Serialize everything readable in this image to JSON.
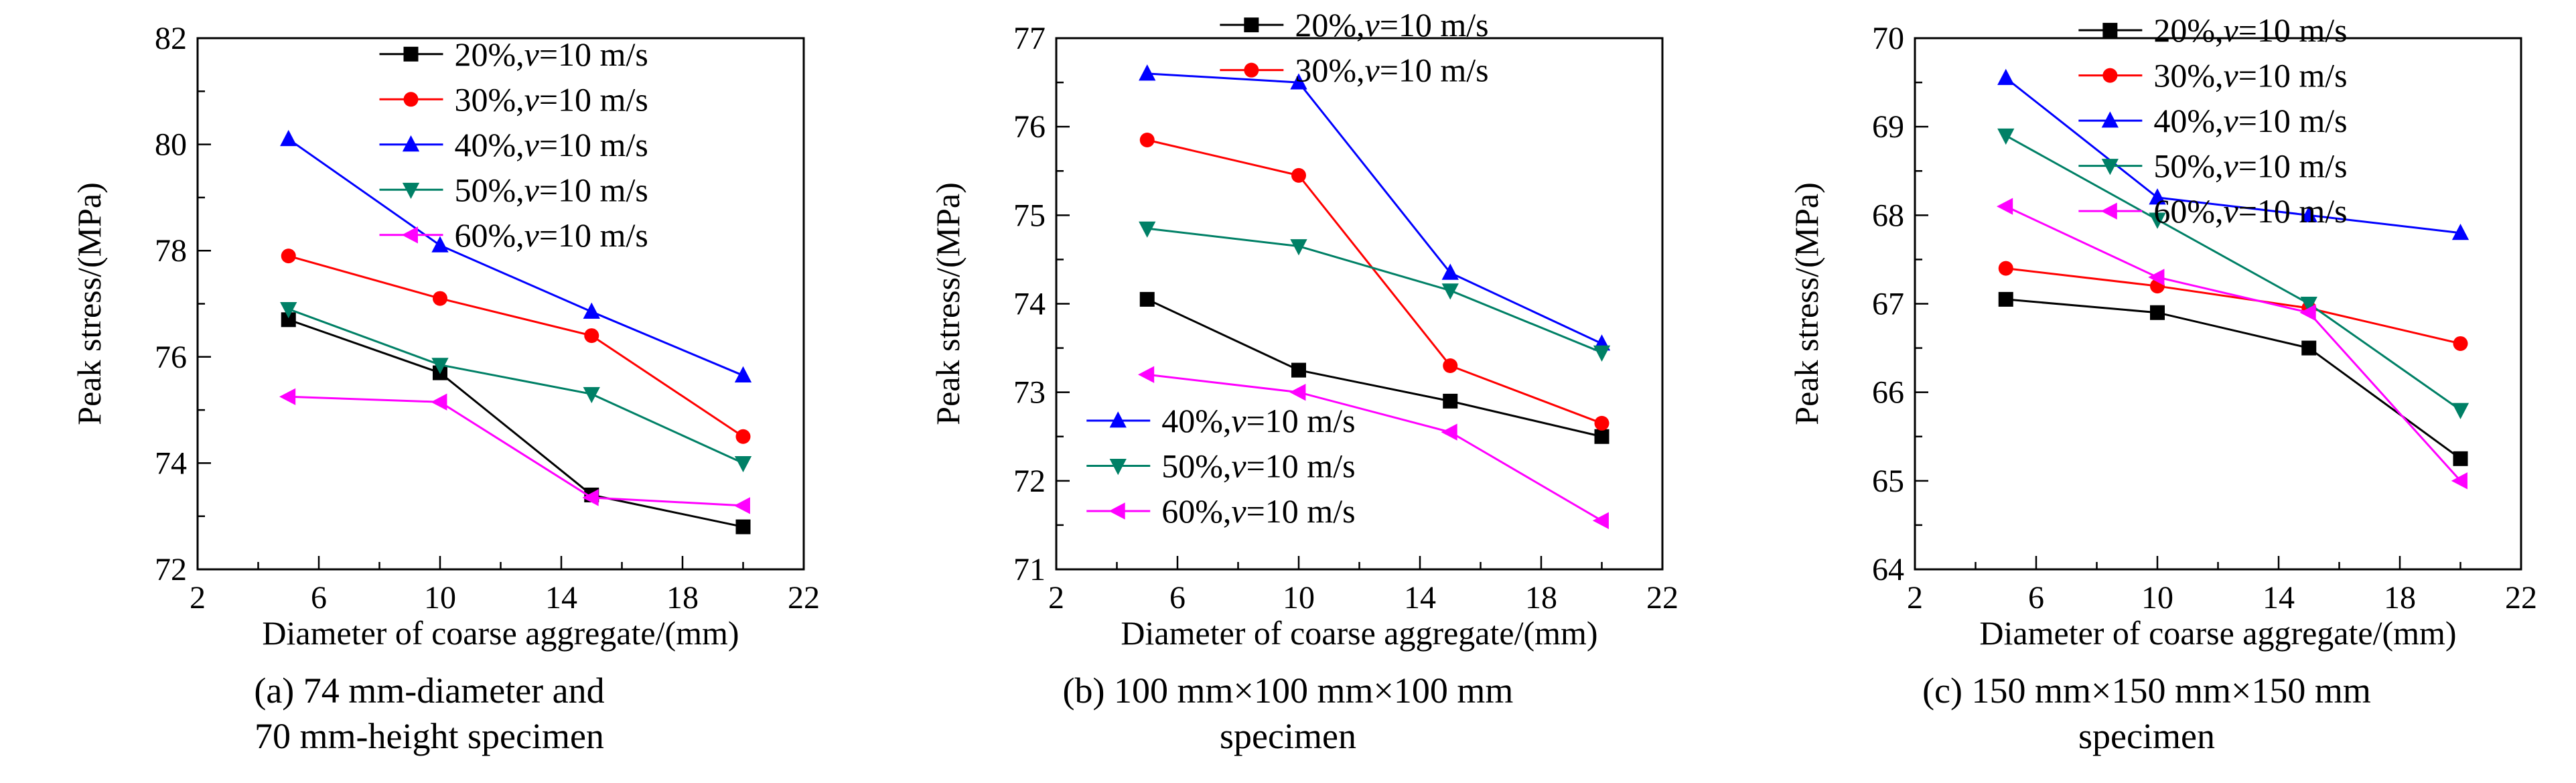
{
  "figure": {
    "background": "#ffffff",
    "text_color": "#000000",
    "axis_color": "#000000"
  },
  "chart_data": [
    {
      "type": "line",
      "title": "",
      "xlabel": "Diameter of coarse aggregate/(mm)",
      "ylabel": "Peak stress/(MPa)",
      "x": [
        5,
        10,
        15,
        20
      ],
      "xlim": [
        2,
        22
      ],
      "xticks": [
        2,
        6,
        10,
        14,
        18,
        22
      ],
      "xminor": 2,
      "ylim": [
        72,
        82
      ],
      "yticks": [
        72,
        74,
        76,
        78,
        80,
        82
      ],
      "yminor": 1,
      "grid": false,
      "series": [
        {
          "name": "20%,v=10 m/s",
          "marker": "square",
          "color": "#000000",
          "values": [
            76.7,
            75.7,
            73.4,
            72.8
          ]
        },
        {
          "name": "30%,v=10 m/s",
          "marker": "circle",
          "color": "#ff0000",
          "values": [
            77.9,
            77.1,
            76.4,
            74.5
          ]
        },
        {
          "name": "40%,v=10 m/s",
          "marker": "triangle-up",
          "color": "#0000ff",
          "values": [
            80.1,
            78.1,
            76.85,
            75.65
          ]
        },
        {
          "name": "50%,v=10 m/s",
          "marker": "triangle-down",
          "color": "#008066",
          "values": [
            76.9,
            75.85,
            75.3,
            74.0
          ]
        },
        {
          "name": "60%,v=10 m/s",
          "marker": "triangle-left",
          "color": "#ff00ff",
          "values": [
            75.25,
            75.15,
            73.35,
            73.2
          ]
        }
      ],
      "legends": [
        {
          "entries": [
            0,
            1,
            2,
            3,
            4
          ],
          "x": 0.3,
          "y": 0.03
        }
      ],
      "caption": [
        "(a) 74 mm-diameter and",
        "70 mm-height specimen"
      ]
    },
    {
      "type": "line",
      "title": "",
      "xlabel": "Diameter of coarse aggregate/(mm)",
      "ylabel": "Peak stress/(MPa)",
      "x": [
        5,
        10,
        15,
        20
      ],
      "xlim": [
        2,
        22
      ],
      "xticks": [
        2,
        6,
        10,
        14,
        18,
        22
      ],
      "xminor": 2,
      "ylim": [
        71,
        77
      ],
      "yticks": [
        71,
        72,
        73,
        74,
        75,
        76,
        77
      ],
      "yminor": 0.5,
      "grid": false,
      "series": [
        {
          "name": "20%,v=10 m/s",
          "marker": "square",
          "color": "#000000",
          "values": [
            74.05,
            73.25,
            72.9,
            72.5
          ]
        },
        {
          "name": "30%,v=10 m/s",
          "marker": "circle",
          "color": "#ff0000",
          "values": [
            75.85,
            75.45,
            73.3,
            72.65
          ]
        },
        {
          "name": "40%,v=10 m/s",
          "marker": "triangle-up",
          "color": "#0000ff",
          "values": [
            76.6,
            76.5,
            74.35,
            73.55
          ]
        },
        {
          "name": "50%,v=10 m/s",
          "marker": "triangle-down",
          "color": "#008066",
          "values": [
            74.85,
            74.65,
            74.15,
            73.45
          ]
        },
        {
          "name": "60%,v=10 m/s",
          "marker": "triangle-left",
          "color": "#ff00ff",
          "values": [
            73.2,
            73.0,
            72.55,
            71.55
          ]
        }
      ],
      "legends": [
        {
          "entries": [
            0,
            1
          ],
          "x": 0.27,
          "y": -0.025
        },
        {
          "entries": [
            2,
            3,
            4
          ],
          "x": 0.05,
          "y": 0.72
        }
      ],
      "caption": [
        "(b) 100 mm×100 mm×100 mm",
        "specimen"
      ]
    },
    {
      "type": "line",
      "title": "",
      "xlabel": "Diameter of coarse aggregate/(mm)",
      "ylabel": "Peak stress/(MPa)",
      "x": [
        5,
        10,
        15,
        20
      ],
      "xlim": [
        2,
        22
      ],
      "xticks": [
        2,
        6,
        10,
        14,
        18,
        22
      ],
      "xminor": 2,
      "ylim": [
        64,
        70
      ],
      "yticks": [
        64,
        65,
        66,
        67,
        68,
        69,
        70
      ],
      "yminor": 0.5,
      "grid": false,
      "series": [
        {
          "name": "20%,v=10 m/s",
          "marker": "square",
          "color": "#000000",
          "values": [
            67.05,
            66.9,
            66.5,
            65.25
          ]
        },
        {
          "name": "30%,v=10 m/s",
          "marker": "circle",
          "color": "#ff0000",
          "values": [
            67.4,
            67.2,
            66.95,
            66.55
          ]
        },
        {
          "name": "40%,v=10 m/s",
          "marker": "triangle-up",
          "color": "#0000ff",
          "values": [
            69.55,
            68.2,
            68.0,
            67.8
          ]
        },
        {
          "name": "50%,v=10 m/s",
          "marker": "triangle-down",
          "color": "#008066",
          "values": [
            68.9,
            67.95,
            67.0,
            65.8
          ]
        },
        {
          "name": "60%,v=10 m/s",
          "marker": "triangle-left",
          "color": "#ff00ff",
          "values": [
            68.1,
            67.3,
            66.9,
            65.0
          ]
        }
      ],
      "legends": [
        {
          "entries": [
            0,
            1,
            2,
            3,
            4
          ],
          "x": 0.27,
          "y": -0.015
        }
      ],
      "caption": [
        "(c) 150 mm×150 mm×150 mm",
        "specimen"
      ]
    }
  ]
}
